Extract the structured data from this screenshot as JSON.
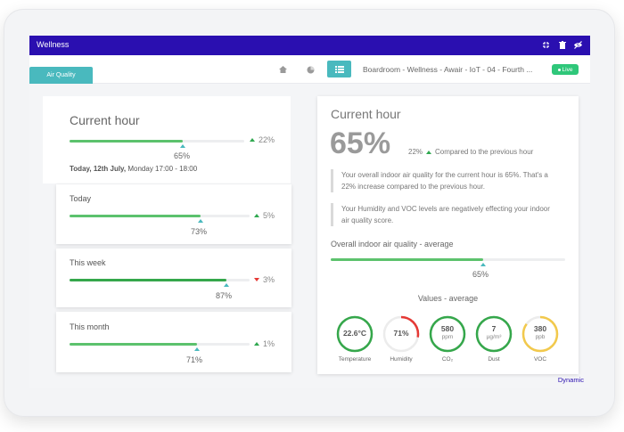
{
  "window": {
    "title": "Wellness"
  },
  "toolbar": {
    "tab_label": "Air Quality",
    "breadcrumb": "Boardroom - Wellness - Awair - IoT - 04 - Fourth ...",
    "live_label": "Live"
  },
  "left": {
    "current": {
      "title": "Current hour",
      "value": "65%",
      "delta": "22%",
      "delta_dir": "up",
      "fraction": 0.65,
      "date_bold": "Today, 12th July,",
      "date_rest": "Monday 17:00 - 18:00"
    },
    "today": {
      "title": "Today",
      "value": "73%",
      "delta": "5%",
      "delta_dir": "up",
      "fraction": 0.73
    },
    "week": {
      "title": "This week",
      "value": "87%",
      "delta": "3%",
      "delta_dir": "down",
      "fraction": 0.87
    },
    "month": {
      "title": "This month",
      "value": "71%",
      "delta": "1%",
      "delta_dir": "up",
      "fraction": 0.71
    }
  },
  "right": {
    "title": "Current hour",
    "big_value": "65%",
    "delta": "22%",
    "delta_text": "Compared to the previous hour",
    "note1": "Your overall indoor air quality for the current hour is 65%. That's a 22% increase compared to the previous hour.",
    "note2": "Your Humidity and VOC levels are negatively effecting your indoor air quality score.",
    "overall_title": "Overall indoor air quality - average",
    "overall_value": "65%",
    "overall_fraction": 0.65,
    "values_title": "Values - average",
    "gauges": [
      {
        "value": "22.6°C",
        "unit": "",
        "label": "Temperature",
        "color": "#35a74b",
        "fill": 1.0
      },
      {
        "value": "71%",
        "unit": "",
        "label": "Humidity",
        "color": "#e53935",
        "fill": 0.28
      },
      {
        "value": "580",
        "unit": "ppm",
        "label": "CO₂",
        "color": "#35a74b",
        "fill": 1.0
      },
      {
        "value": "7",
        "unit": "µg/m³",
        "label": "Dust",
        "color": "#35a74b",
        "fill": 1.0
      },
      {
        "value": "380",
        "unit": "ppb",
        "label": "VOC",
        "color": "#f2c94c",
        "fill": 0.85
      }
    ]
  },
  "footer": {
    "mode": "Dynamic"
  },
  "colors": {
    "brand": "#2a0fb0",
    "accent": "#49b9be",
    "good": "#5cc26d",
    "bad": "#e53935",
    "warn": "#f2c94c"
  }
}
